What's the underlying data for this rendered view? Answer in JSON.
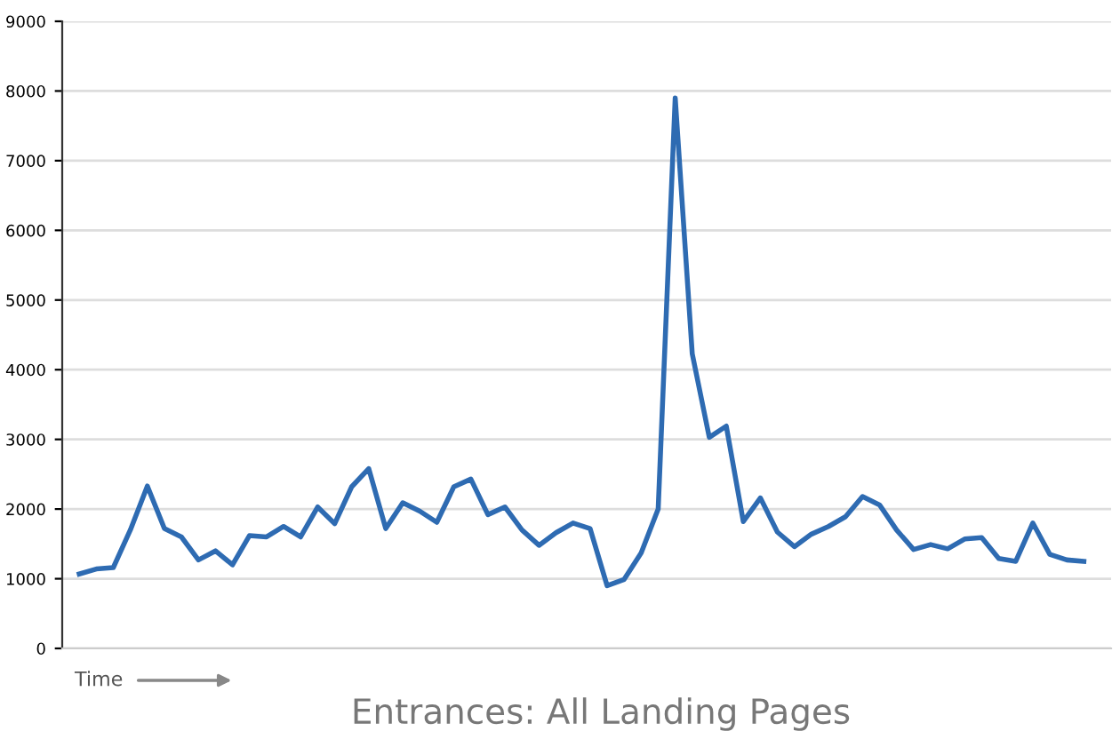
{
  "chart_data": {
    "type": "line",
    "title": "Entrances: All Landing Pages",
    "xlabel": "Time",
    "categories": [
      null,
      null,
      null,
      null,
      null,
      null,
      null,
      null,
      null,
      null,
      null,
      null,
      null,
      null,
      null,
      null,
      null,
      null,
      null,
      null,
      null,
      null,
      null,
      null,
      null,
      null,
      null,
      null,
      null,
      null,
      null,
      null,
      null,
      null,
      null,
      null,
      null,
      null,
      null,
      null,
      null,
      null,
      null,
      null,
      null,
      null,
      null,
      null,
      null,
      null,
      null,
      null,
      null,
      null,
      null,
      null,
      null,
      null,
      null,
      null
    ],
    "series": [
      {
        "color": "#2e6bb2",
        "values": [
          1068,
          1140,
          1160,
          1700,
          2330,
          1720,
          1600,
          1270,
          1400,
          1200,
          1620,
          1600,
          1750,
          1600,
          2030,
          1790,
          2320,
          2580,
          1720,
          2090,
          1970,
          1810,
          2320,
          2430,
          1920,
          2030,
          1700,
          1480,
          1660,
          1800,
          1720,
          900,
          990,
          1370,
          2000,
          7900,
          4230,
          3030,
          3190,
          1820,
          2160,
          1670,
          1460,
          1640,
          1750,
          1890,
          2180,
          2060,
          1700,
          1420,
          1490,
          1430,
          1570,
          1590,
          1290,
          1250,
          1800,
          1350,
          1270,
          1250
        ]
      }
    ],
    "ylim": [
      0,
      9000
    ],
    "yticks": [
      0,
      1000,
      2000,
      3000,
      4000,
      5000,
      6000,
      7000,
      8000,
      9000
    ],
    "grid": "y",
    "legend": false,
    "marker": "none",
    "line_style": "solid"
  }
}
